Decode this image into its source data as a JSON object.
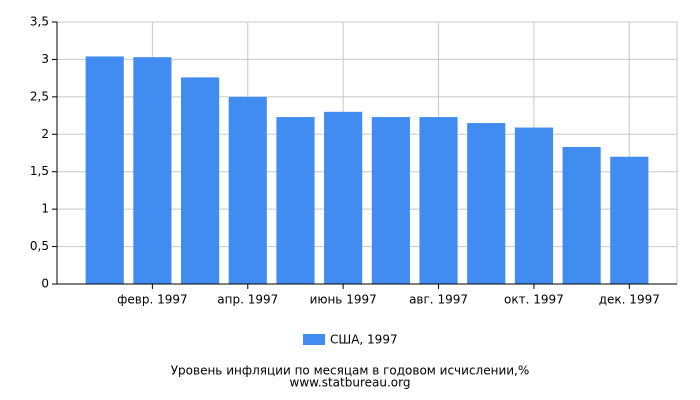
{
  "chart_data": {
    "type": "bar",
    "title": "Уровень инфляции по месяцам в годовом исчислении,%",
    "subtitle": "www.statbureau.org",
    "categories": [
      null,
      "февр. 1997",
      null,
      "апр. 1997",
      null,
      "июнь 1997",
      null,
      "авг. 1997",
      null,
      "окт. 1997",
      null,
      "дек. 1997"
    ],
    "series": [
      {
        "name": "США, 1997",
        "color": "#418cf0",
        "values": [
          3.04,
          3.03,
          2.76,
          2.5,
          2.23,
          2.3,
          2.23,
          2.23,
          2.15,
          2.09,
          1.83,
          1.7
        ]
      }
    ],
    "ylim": [
      0,
      3.5
    ],
    "yticks": [
      0,
      {
        "value": 0.5,
        "label": "0,5"
      },
      1,
      {
        "value": 1.5,
        "label": "1,5"
      },
      2,
      {
        "value": 2.5,
        "label": "2,5"
      },
      3,
      {
        "value": 3.5,
        "label": "3,5"
      }
    ],
    "grid": true,
    "legend": "bottom"
  }
}
